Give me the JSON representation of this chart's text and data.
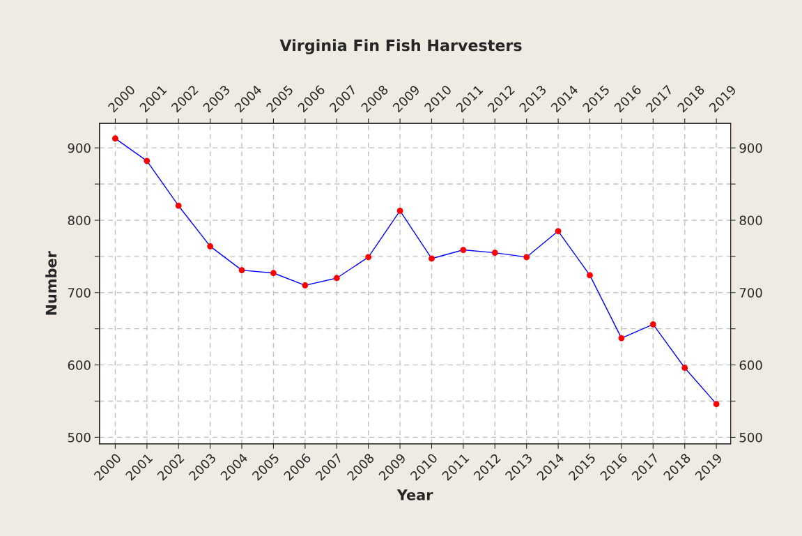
{
  "chart_data": {
    "type": "line",
    "title": "Virginia Fin Fish Harvesters",
    "xlabel": "Year",
    "ylabel": "Number",
    "x": [
      2000,
      2001,
      2002,
      2003,
      2004,
      2005,
      2006,
      2007,
      2008,
      2009,
      2010,
      2011,
      2012,
      2013,
      2014,
      2015,
      2016,
      2017,
      2018,
      2019
    ],
    "series": [
      {
        "color": "#0000ff",
        "colors": [
          "#ff0000",
          "#ff0000",
          "#ff0000",
          "#ff0000",
          "#ff0000",
          "#ff0000",
          "#ff0000",
          "#ff0000",
          "#ff0000",
          "#ff0000",
          "#ff0000",
          "#ff0000",
          "#ff0000",
          "#ff0000",
          "#ff0000",
          "#ff0000",
          "#ff0000",
          "#ff0000",
          "#ff0000",
          "#ff0000"
        ],
        "values": [
          913,
          882,
          820,
          764,
          731,
          727,
          710,
          720,
          749,
          813,
          747,
          759,
          755,
          749,
          785,
          724,
          637,
          656,
          596,
          546
        ]
      }
    ],
    "xlim": [
      1999.5,
      2019.45
    ],
    "xticks": [
      2000,
      2001,
      2002,
      2003,
      2004,
      2005,
      2006,
      2007,
      2008,
      2009,
      2010,
      2011,
      2012,
      2013,
      2014,
      2015,
      2016,
      2017,
      2018,
      2019
    ],
    "x2lim": [
      1999.5,
      2019.45
    ],
    "x2ticks": [
      2000,
      2001,
      2002,
      2003,
      2004,
      2005,
      2006,
      2007,
      2008,
      2009,
      2010,
      2011,
      2012,
      2013,
      2014,
      2015,
      2016,
      2017,
      2018,
      2019
    ],
    "ylim": [
      491,
      934
    ],
    "yticks": [
      500,
      {
        "value": 550,
        "label": null
      },
      600,
      {
        "value": 650,
        "label": null
      },
      700,
      {
        "value": 750,
        "label": null
      },
      800,
      {
        "value": 850,
        "label": null
      },
      900
    ],
    "y2lim": [
      491,
      934
    ],
    "y2ticks": [
      500,
      {
        "value": 550,
        "label": null
      },
      600,
      {
        "value": 650,
        "label": null
      },
      700,
      {
        "value": 750,
        "label": null
      },
      800,
      {
        "value": 850,
        "label": null
      },
      900
    ],
    "grid": true,
    "marker": "circle",
    "line_style": "solid"
  }
}
